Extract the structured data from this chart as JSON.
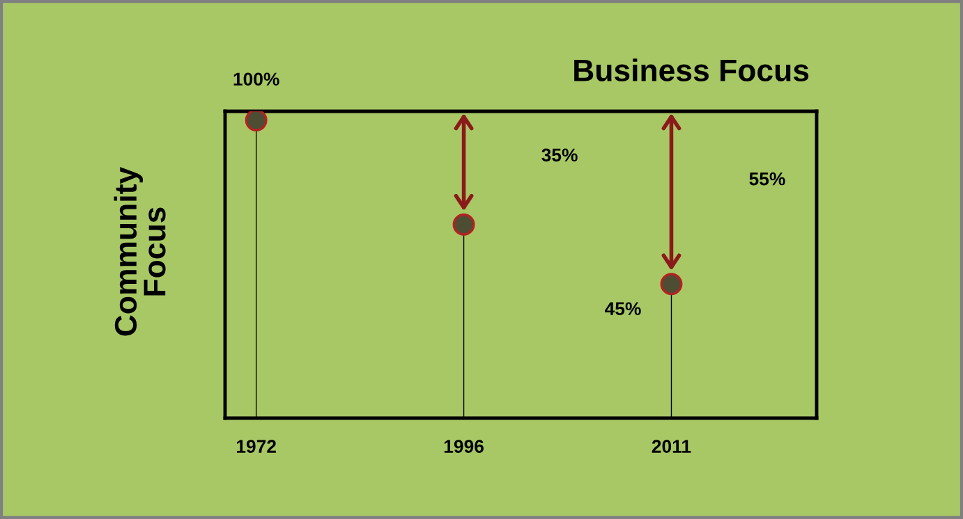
{
  "chart_data": {
    "type": "lollipop",
    "title": "Business Focus",
    "ylabel": "Community\nFocus",
    "categories": [
      "1972",
      "1996",
      "2011"
    ],
    "values": [
      100,
      65,
      45
    ],
    "value_labels": [
      "100%",
      null,
      "45%"
    ],
    "ylim": [
      0,
      103
    ],
    "tick_labels": "x",
    "marker": "circle",
    "color": "#4d4d33",
    "annotations": [
      "35%",
      "55%"
    ]
  }
}
